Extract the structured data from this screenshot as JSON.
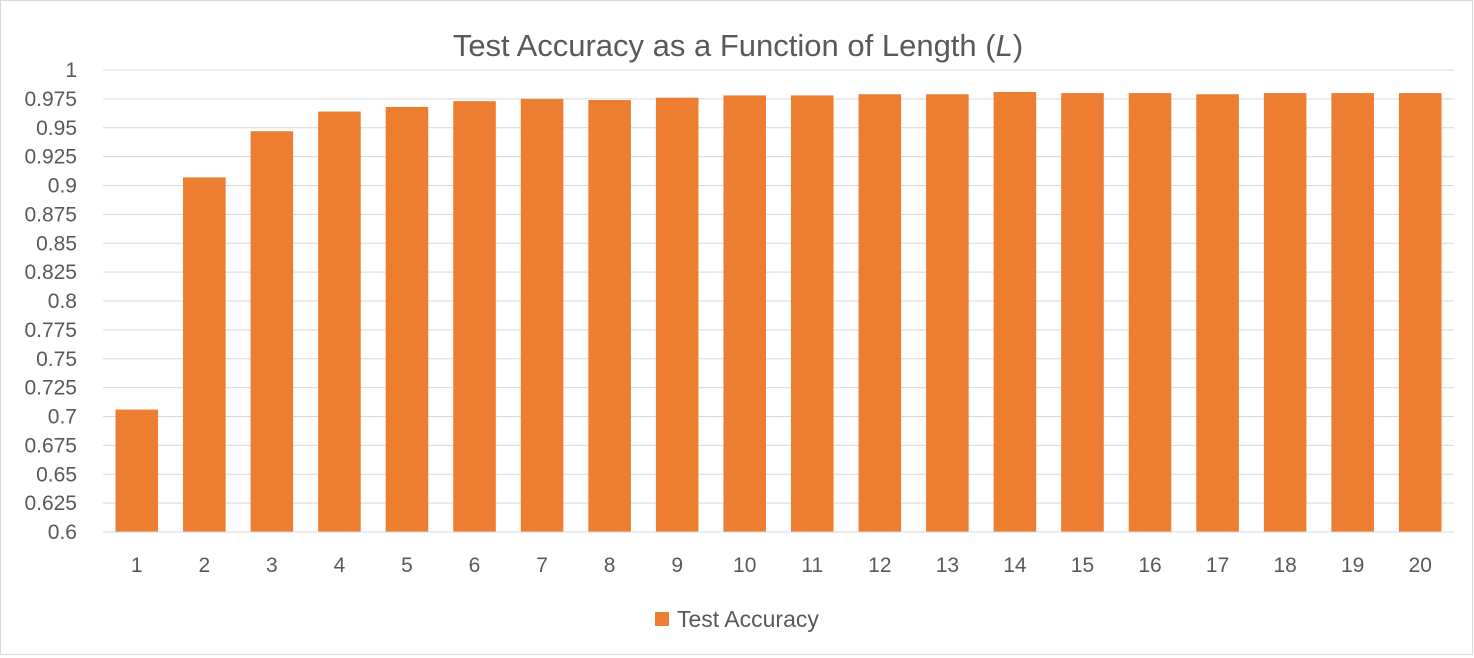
{
  "chart_data": {
    "type": "bar",
    "title": "Test Accuracy as a Function of Length (",
    "title_italic": "L",
    "title_suffix": ")",
    "xlabel": "",
    "ylabel": "",
    "categories": [
      "1",
      "2",
      "3",
      "4",
      "5",
      "6",
      "7",
      "8",
      "9",
      "10",
      "11",
      "12",
      "13",
      "14",
      "15",
      "16",
      "17",
      "18",
      "19",
      "20"
    ],
    "series": [
      {
        "name": "Test Accuracy",
        "color": "#ED7D31",
        "values": [
          0.706,
          0.907,
          0.947,
          0.964,
          0.968,
          0.973,
          0.975,
          0.974,
          0.976,
          0.978,
          0.978,
          0.979,
          0.979,
          0.981,
          0.98,
          0.98,
          0.979,
          0.98,
          0.98,
          0.98
        ]
      }
    ],
    "ylim": [
      0.6,
      1
    ],
    "y_ticks": [
      "0.6",
      "0.625",
      "0.65",
      "0.675",
      "0.7",
      "0.725",
      "0.75",
      "0.775",
      "0.8",
      "0.825",
      "0.85",
      "0.875",
      "0.9",
      "0.925",
      "0.95",
      "0.975",
      "1"
    ],
    "grid": true,
    "legend_position": "bottom"
  }
}
